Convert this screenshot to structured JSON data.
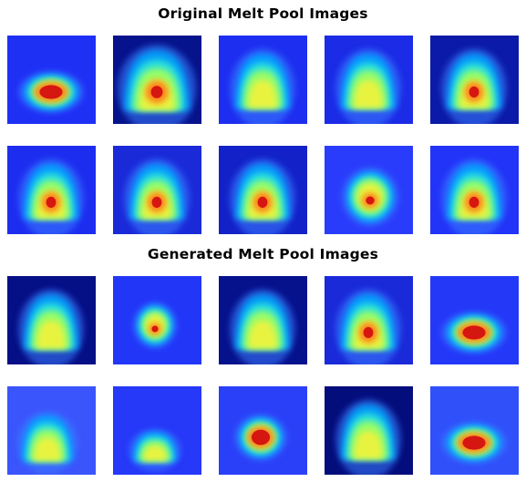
{
  "sections": [
    {
      "title": "Original Melt Pool Images",
      "images": [
        {
          "colormap": "jet",
          "shape": "hot-ellipse",
          "background": "#1f30f5",
          "hot": true
        },
        {
          "colormap": "jet",
          "shape": "wide-dome",
          "background": "#06138c",
          "hot": true
        },
        {
          "colormap": "jet",
          "shape": "dome",
          "background": "#1d2ef0",
          "hot": false
        },
        {
          "colormap": "jet",
          "shape": "dome",
          "background": "#1b2be6",
          "hot": false
        },
        {
          "colormap": "jet",
          "shape": "dome",
          "background": "#0b1aa8",
          "hot": true
        },
        {
          "colormap": "jet",
          "shape": "dome",
          "background": "#1d2df0",
          "hot": true
        },
        {
          "colormap": "jet",
          "shape": "dome",
          "background": "#1a2ad9",
          "hot": true
        },
        {
          "colormap": "jet",
          "shape": "dome",
          "background": "#1222c8",
          "hot": true
        },
        {
          "colormap": "jet",
          "shape": "round",
          "background": "#2a3cfb",
          "hot": true
        },
        {
          "colormap": "jet",
          "shape": "dome",
          "background": "#2234f8",
          "hot": true
        }
      ]
    },
    {
      "title": "Generated Melt Pool Images",
      "images": [
        {
          "colormap": "jet",
          "shape": "dome",
          "background": "#050f86",
          "hot": false
        },
        {
          "colormap": "jet",
          "shape": "small-blob",
          "background": "#2236f8",
          "hot": true
        },
        {
          "colormap": "jet",
          "shape": "dome",
          "background": "#06118c",
          "hot": false
        },
        {
          "colormap": "jet",
          "shape": "dome",
          "background": "#1a2ad9",
          "hot": true
        },
        {
          "colormap": "jet",
          "shape": "hot-ellipse",
          "background": "#2438f8",
          "hot": true
        },
        {
          "colormap": "jet",
          "shape": "faint-dome",
          "background": "#3a55fb",
          "hot": false
        },
        {
          "colormap": "jet",
          "shape": "low-dome",
          "background": "#2638f8",
          "hot": false
        },
        {
          "colormap": "jet",
          "shape": "hot-round",
          "background": "#2a40f8",
          "hot": true
        },
        {
          "colormap": "jet",
          "shape": "dome",
          "background": "#040d7c",
          "hot": false
        },
        {
          "colormap": "jet",
          "shape": "hot-ellipse",
          "background": "#3050fa",
          "hot": true
        }
      ]
    }
  ]
}
